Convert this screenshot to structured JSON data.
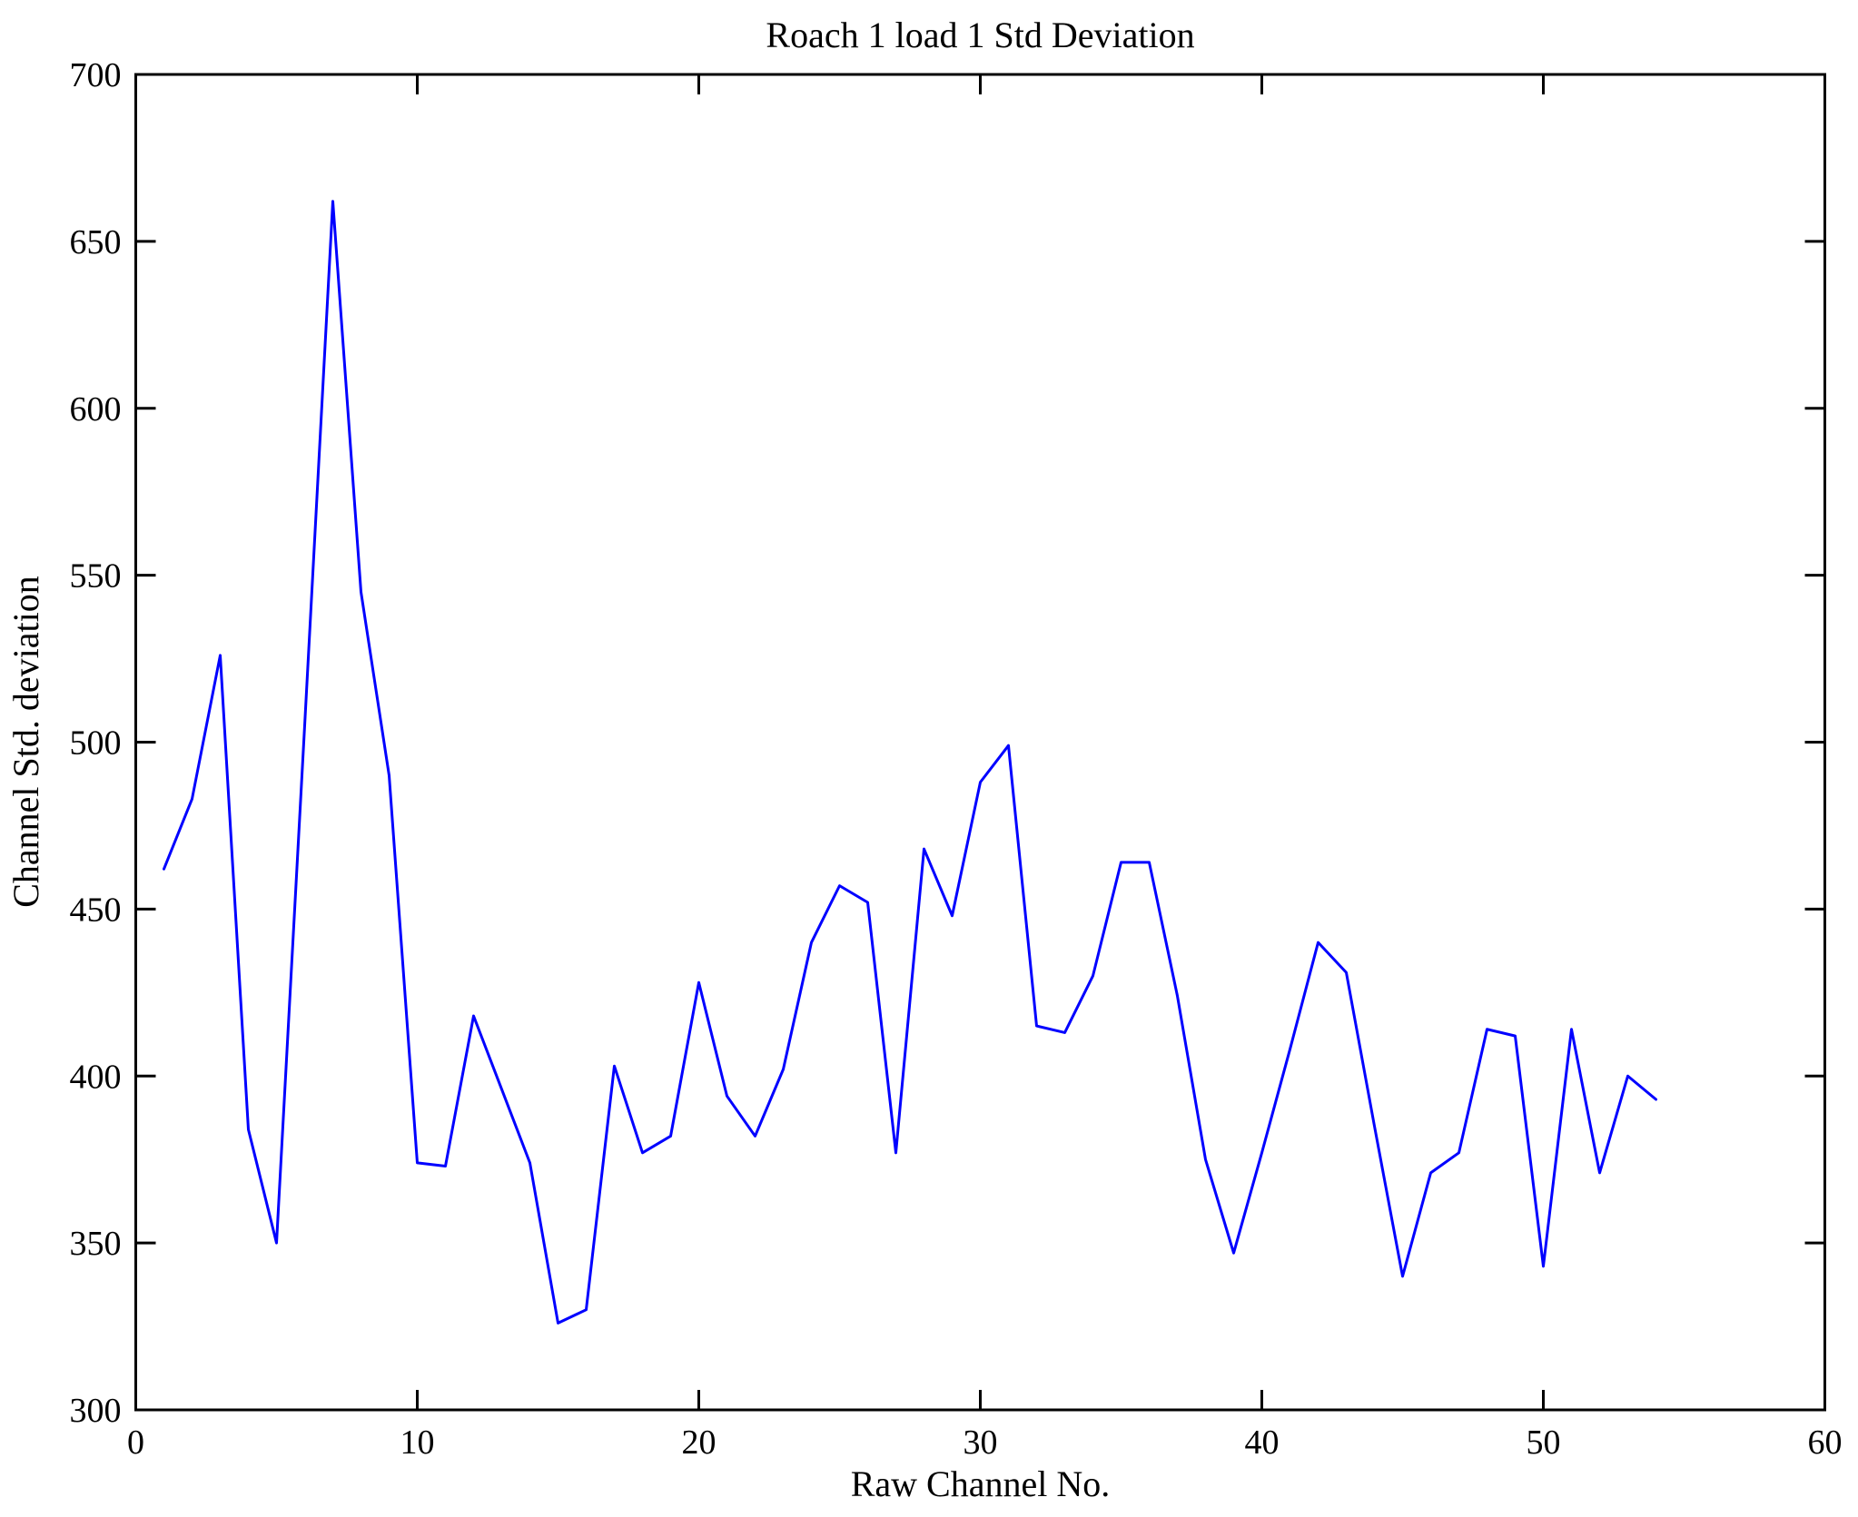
{
  "figure": {
    "background": "#ffffff",
    "axis_color": "#000000"
  },
  "chart_data": {
    "type": "line",
    "title": "Roach 1 load 1 Std Deviation",
    "xlabel": "Raw Channel No.",
    "ylabel": "Channel Std. deviation",
    "series_name": "Channel Std. deviation",
    "line_color": "#0000ff",
    "grid": false,
    "legend_position": "none",
    "xlim": [
      0,
      60
    ],
    "ylim": [
      300,
      700
    ],
    "xticks": [
      0,
      10,
      20,
      30,
      40,
      50,
      60
    ],
    "yticks": [
      300,
      350,
      400,
      450,
      500,
      550,
      600,
      650,
      700
    ],
    "x": [
      1,
      2,
      3,
      4,
      5,
      6,
      7,
      8,
      9,
      10,
      11,
      12,
      13,
      14,
      15,
      16,
      17,
      18,
      19,
      20,
      21,
      22,
      23,
      24,
      25,
      26,
      27,
      28,
      29,
      30,
      31,
      32,
      33,
      34,
      35,
      36,
      37,
      38,
      39,
      40,
      41,
      42,
      43,
      44,
      45,
      46,
      47,
      48,
      49,
      50,
      51,
      52,
      53,
      54
    ],
    "y": [
      462,
      483,
      526,
      384,
      350,
      505,
      662,
      545,
      490,
      374,
      373,
      418,
      396,
      374,
      326,
      330,
      403,
      377,
      382,
      428,
      394,
      382,
      402,
      440,
      457,
      452,
      377,
      468,
      448,
      488,
      499,
      415,
      413,
      430,
      464,
      464,
      424,
      375,
      347,
      377,
      408,
      440,
      431,
      385,
      340,
      371,
      377,
      414,
      412,
      343,
      414,
      371,
      400,
      393
    ]
  }
}
